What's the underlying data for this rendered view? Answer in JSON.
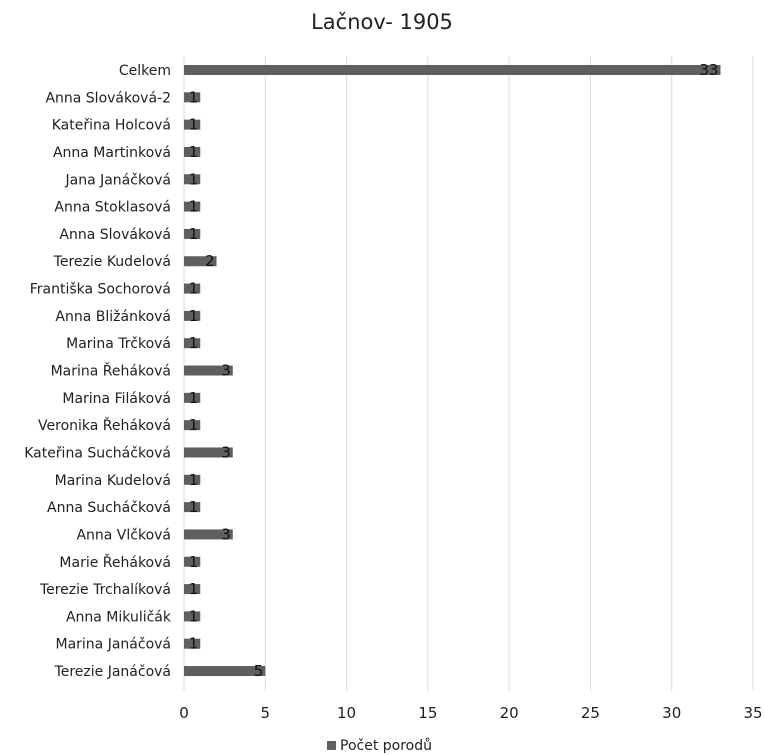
{
  "chart_data": {
    "type": "bar",
    "orientation": "horizontal",
    "title": "Lačnov- 1905",
    "xlabel": "",
    "ylabel": "",
    "xlim": [
      0,
      35
    ],
    "x_ticks": [
      0,
      5,
      10,
      15,
      20,
      25,
      30,
      35
    ],
    "categories": [
      "Celkem",
      "Anna Slováková-2",
      "Kateřina Holcová",
      "Anna Martinková",
      "Jana Janáčková",
      "Anna Stoklasová",
      "Anna Slováková",
      "Terezie Kudelová",
      "Františka Sochorová",
      "Anna Bližánková",
      "Marina Trčková",
      "Marina Řeháková",
      "Marina Filáková",
      "Veronika Řeháková",
      "Kateřina Sucháčková",
      "Marina Kudelová",
      "Anna Sucháčková",
      "Anna Vlčková",
      "Marie Řeháková",
      "Terezie Trchalíková",
      "Anna Mikuličák",
      "Marina Janáčová",
      "Terezie Janáčová"
    ],
    "series": [
      {
        "name": "Počet porodů",
        "values": [
          33,
          1,
          1,
          1,
          1,
          1,
          1,
          2,
          1,
          1,
          1,
          3,
          1,
          1,
          3,
          1,
          1,
          3,
          1,
          1,
          1,
          1,
          5
        ],
        "data_labels": [
          "33",
          "1",
          "1",
          "1",
          "1",
          "1",
          "1",
          "2",
          "1",
          "1",
          "1",
          "3",
          "1",
          "1",
          "3",
          "1",
          "1",
          "3",
          "1",
          "1",
          "1",
          "1",
          "5"
        ]
      }
    ],
    "grid": true,
    "legend_position": "bottom",
    "colors": {
      "bar": "#5f5f5f",
      "grid": "#d9d9d9",
      "text": "#1f1f1f",
      "title": "#222222"
    }
  }
}
